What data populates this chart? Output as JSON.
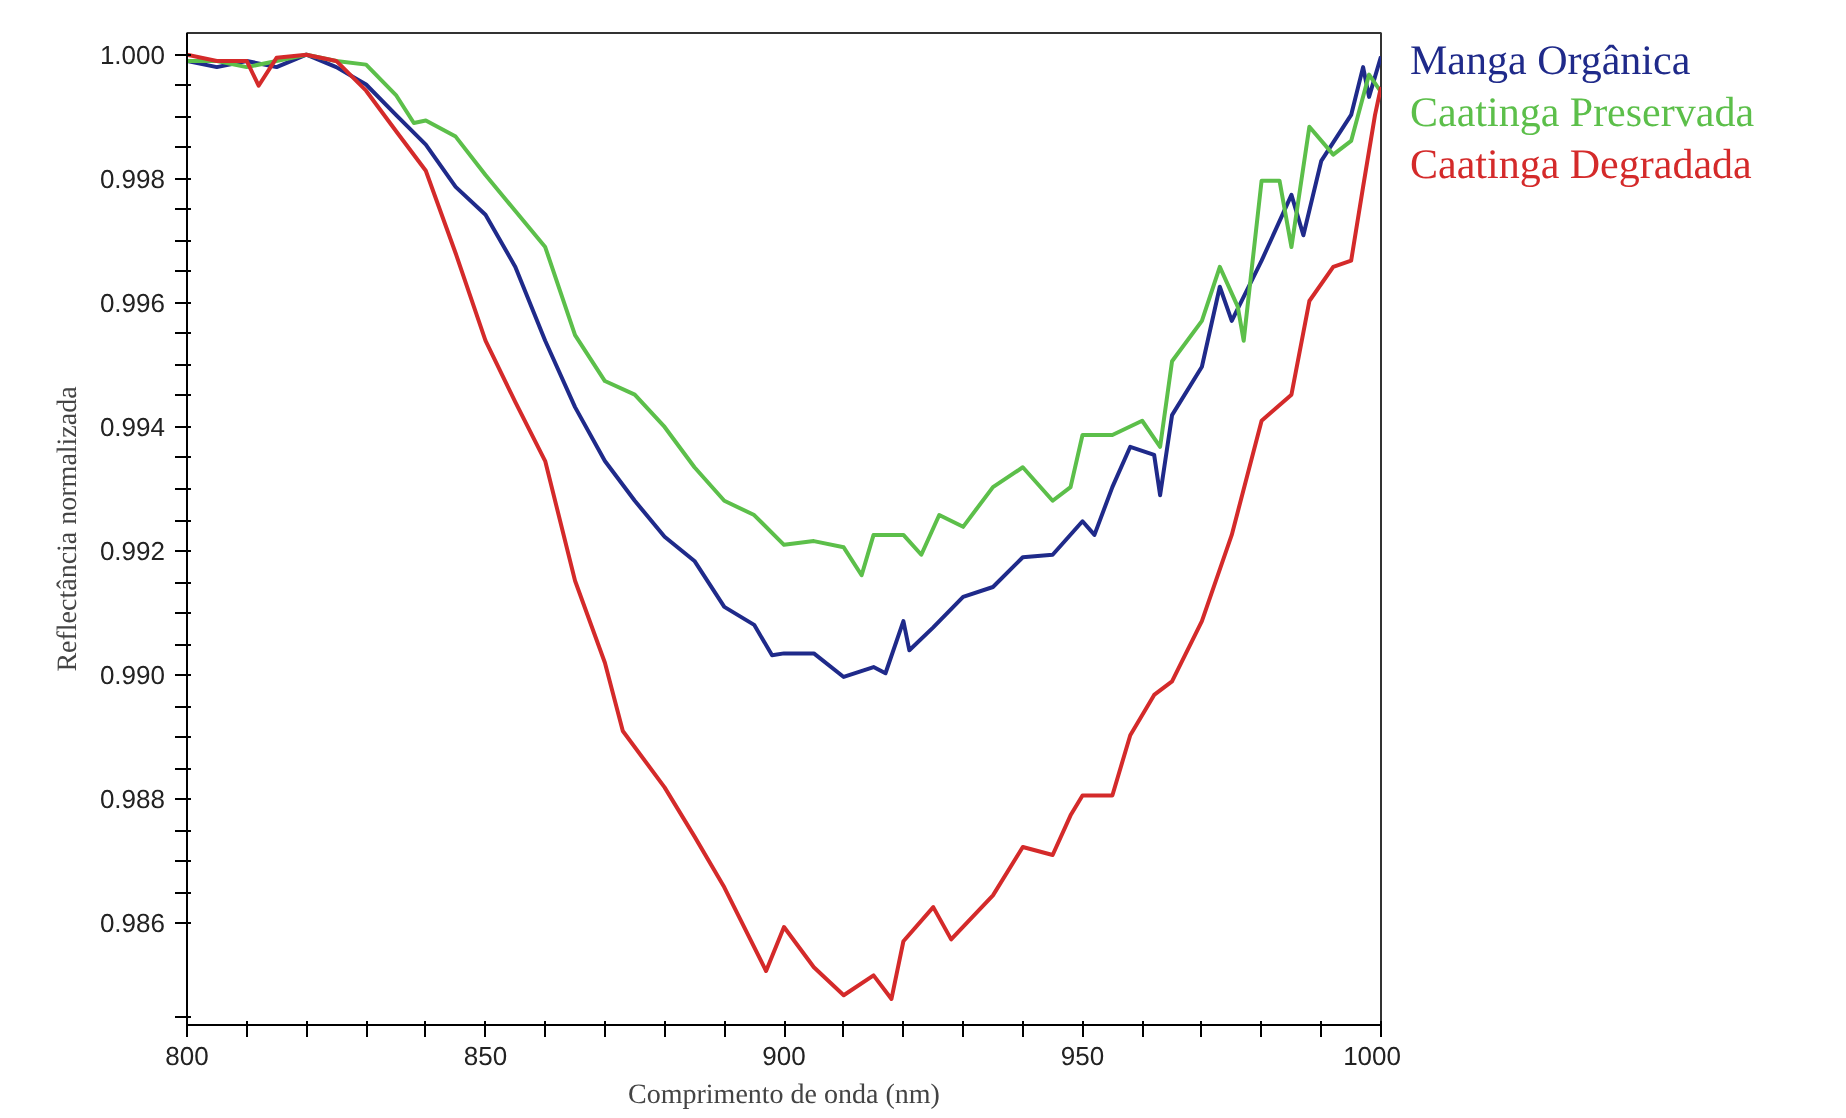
{
  "chart_data": {
    "type": "line",
    "xlabel": "Comprimento de onda (nm)",
    "ylabel": "Reflectância normalizada",
    "xlim": [
      800,
      1000
    ],
    "ylim": [
      0.98436,
      1.00035
    ],
    "xticks": [
      800,
      {
        "value": 810,
        "label": null
      },
      {
        "value": 820,
        "label": null
      },
      {
        "value": 830,
        "label": null
      },
      {
        "value": 840,
        "label": null
      },
      850,
      {
        "value": 860,
        "label": null
      },
      {
        "value": 870,
        "label": null
      },
      {
        "value": 880,
        "label": null
      },
      {
        "value": 890,
        "label": null
      },
      900,
      {
        "value": 910,
        "label": null
      },
      {
        "value": 920,
        "label": null
      },
      {
        "value": 930,
        "label": null
      },
      {
        "value": 940,
        "label": null
      },
      950,
      {
        "value": 960,
        "label": null
      },
      {
        "value": 970,
        "label": null
      },
      {
        "value": 980,
        "label": null
      },
      {
        "value": 990,
        "label": null
      },
      1000
    ],
    "yticks": [
      {
        "value": 0.9845,
        "label": null
      },
      0.986,
      {
        "value": 0.9865,
        "label": null
      },
      {
        "value": 0.987,
        "label": null
      },
      {
        "value": 0.9875,
        "label": null
      },
      0.988,
      {
        "value": 0.9885,
        "label": null
      },
      {
        "value": 0.989,
        "label": null
      },
      {
        "value": 0.9895,
        "label": null
      },
      {
        "value": 0.99,
        "label": "0.990"
      },
      {
        "value": 0.9905,
        "label": null
      },
      {
        "value": 0.991,
        "label": null
      },
      {
        "value": 0.9915,
        "label": null
      },
      0.992,
      {
        "value": 0.9925,
        "label": null
      },
      {
        "value": 0.993,
        "label": null
      },
      {
        "value": 0.9935,
        "label": null
      },
      0.994,
      {
        "value": 0.9945,
        "label": null
      },
      {
        "value": 0.995,
        "label": null
      },
      {
        "value": 0.9955,
        "label": null
      },
      0.996,
      {
        "value": 0.9965,
        "label": null
      },
      {
        "value": 0.997,
        "label": null
      },
      {
        "value": 0.9975,
        "label": null
      },
      0.998,
      {
        "value": 0.9985,
        "label": null
      },
      {
        "value": 0.999,
        "label": null
      },
      {
        "value": 0.9995,
        "label": null
      },
      {
        "value": 1.0,
        "label": "1.000"
      }
    ],
    "grid": false,
    "marker": "none",
    "line_style": "solid",
    "series": [
      {
        "name": "Manga Orgânica",
        "color": "#1f2a8a",
        "x": [
          800,
          805,
          810,
          815,
          820,
          825,
          830,
          835,
          840,
          845,
          850,
          855,
          860,
          865,
          870,
          875,
          880,
          885,
          890,
          895,
          898,
          900,
          905,
          910,
          915,
          917,
          920,
          921,
          925,
          930,
          935,
          940,
          945,
          950,
          952,
          955,
          958,
          962,
          963,
          965,
          970,
          973,
          975,
          980,
          985,
          987,
          990,
          995,
          997,
          998,
          1000
        ],
        "values": [
          0.9999,
          0.9998,
          0.9999,
          0.9998,
          1.0,
          0.9998,
          0.99952,
          0.99903,
          0.99855,
          0.99787,
          0.99742,
          0.99658,
          0.99539,
          0.99432,
          0.99345,
          0.99281,
          0.99223,
          0.99184,
          0.9911,
          0.99081,
          0.99032,
          0.99035,
          0.99035,
          0.98997,
          0.99013,
          0.99003,
          0.99087,
          0.9904,
          0.99077,
          0.99126,
          0.99142,
          0.9919,
          0.99194,
          0.99248,
          0.99226,
          0.99303,
          0.99368,
          0.99355,
          0.9929,
          0.99419,
          0.99497,
          0.99626,
          0.99571,
          0.99668,
          0.99774,
          0.99709,
          0.99829,
          0.99903,
          0.9998,
          0.99932,
          0.99997
        ]
      },
      {
        "name": "Caatinga Preservada",
        "color": "#5cbf4a",
        "x": [
          800,
          805,
          810,
          815,
          820,
          825,
          830,
          835,
          838,
          840,
          845,
          850,
          855,
          860,
          865,
          870,
          875,
          880,
          885,
          890,
          895,
          900,
          905,
          910,
          913,
          915,
          920,
          923,
          926,
          930,
          935,
          940,
          945,
          948,
          950,
          955,
          960,
          963,
          965,
          970,
          973,
          976,
          977,
          980,
          983,
          985,
          988,
          992,
          995,
          998,
          1000
        ],
        "values": [
          0.9999,
          0.9999,
          0.9998,
          0.9999,
          1.0,
          0.9999,
          0.99984,
          0.99935,
          0.9989,
          0.99894,
          0.99868,
          0.99806,
          0.99748,
          0.9969,
          0.99548,
          0.99474,
          0.99452,
          0.994,
          0.99335,
          0.99281,
          0.99258,
          0.9921,
          0.99216,
          0.99206,
          0.99161,
          0.99226,
          0.99226,
          0.99194,
          0.99258,
          0.99239,
          0.99303,
          0.99335,
          0.99281,
          0.99303,
          0.99387,
          0.99387,
          0.9941,
          0.99368,
          0.99506,
          0.99571,
          0.99658,
          0.99594,
          0.99539,
          0.99797,
          0.99797,
          0.9969,
          0.99884,
          0.99839,
          0.99861,
          0.99968,
          0.9994
        ]
      },
      {
        "name": "Caatinga Degradada",
        "color": "#d42a2a",
        "x": [
          800,
          805,
          810,
          812,
          815,
          820,
          825,
          830,
          835,
          840,
          845,
          850,
          855,
          860,
          865,
          870,
          873,
          880,
          885,
          890,
          897,
          900,
          905,
          910,
          915,
          918,
          920,
          925,
          928,
          935,
          940,
          945,
          948,
          950,
          955,
          958,
          962,
          965,
          970,
          975,
          980,
          985,
          988,
          992,
          995,
          997,
          999,
          1000
        ],
        "values": [
          1.0,
          0.9999,
          0.9999,
          0.9995,
          0.99995,
          1.0,
          0.9999,
          0.99942,
          0.99877,
          0.99813,
          0.9968,
          0.99539,
          0.9944,
          0.99345,
          0.99152,
          0.9902,
          0.9891,
          0.98819,
          0.9874,
          0.98658,
          0.98523,
          0.98594,
          0.98529,
          0.98484,
          0.98516,
          0.98478,
          0.98571,
          0.98626,
          0.98574,
          0.98645,
          0.98723,
          0.9871,
          0.98774,
          0.98806,
          0.98806,
          0.98903,
          0.98968,
          0.9899,
          0.99087,
          0.99226,
          0.9941,
          0.99452,
          0.99603,
          0.99658,
          0.99668,
          0.99787,
          0.99903,
          0.99948
        ]
      }
    ]
  }
}
